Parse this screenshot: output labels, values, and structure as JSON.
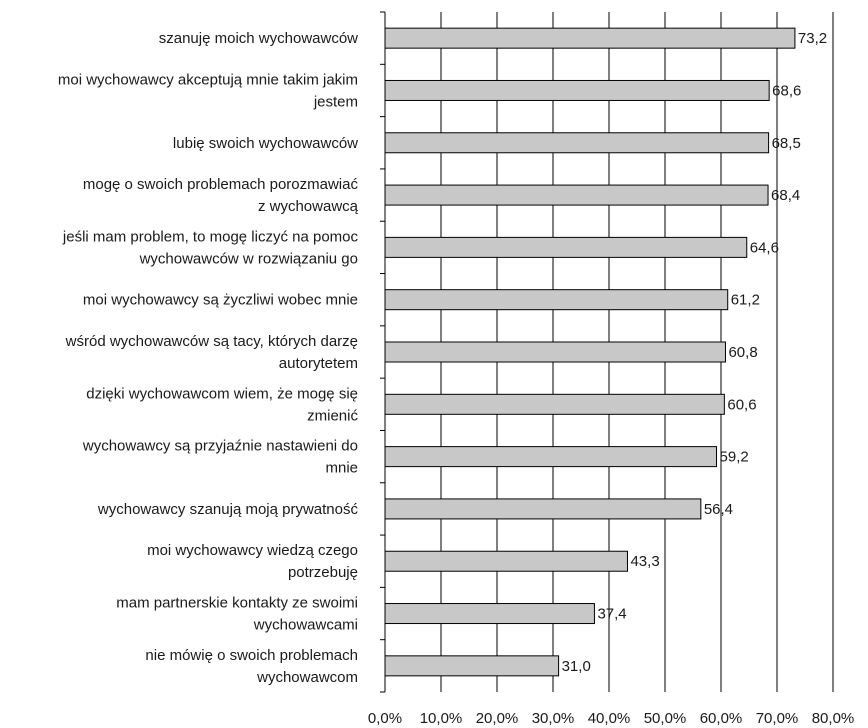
{
  "chart_data": {
    "type": "bar",
    "orientation": "horizontal",
    "categories": [
      "szanuję moich wychowawców",
      "moi wychowawcy akceptują mnie takim jakim jestem",
      "lubię swoich wychowawców",
      "mogę o swoich problemach porozmawiać z wychowawcą",
      "jeśli mam problem, to mogę liczyć na pomoc wychowawców w rozwiązaniu go",
      "moi wychowawcy są życzliwi wobec mnie",
      "wśród wychowawców są tacy, których darzę autorytetem",
      "dzięki wychowawcom wiem, że mogę się zmienić",
      "wychowawcy są przyjaźnie nastawieni do mnie",
      "wychowawcy szanują moją prywatność",
      "moi wychowawcy wiedzą czego potrzebuję",
      "mam partnerskie kontakty ze swoimi wychowawcami",
      "nie mówię o swoich problemach wychowawcom"
    ],
    "category_lines": [
      [
        "szanuję moich wychowawców"
      ],
      [
        "moi wychowawcy akceptują mnie takim jakim",
        "jestem"
      ],
      [
        "lubię swoich wychowawców"
      ],
      [
        "mogę o swoich problemach porozmawiać",
        "z wychowawcą"
      ],
      [
        "jeśli mam problem, to mogę liczyć na pomoc",
        "wychowawców w rozwiązaniu go"
      ],
      [
        "moi wychowawcy są życzliwi wobec mnie"
      ],
      [
        "wśród wychowawców są tacy, których darzę",
        "autorytetem"
      ],
      [
        "dzięki wychowawcom wiem, że mogę się",
        "zmienić"
      ],
      [
        "wychowawcy są przyjaźnie nastawieni do",
        "mnie"
      ],
      [
        "wychowawcy szanują moją prywatność"
      ],
      [
        "moi wychowawcy wiedzą czego",
        "potrzebuję"
      ],
      [
        "mam partnerskie kontakty ze swoimi",
        "wychowawcami"
      ],
      [
        "nie mówię o swoich problemach",
        "wychowawcom"
      ]
    ],
    "values": [
      73.2,
      68.6,
      68.5,
      68.4,
      64.6,
      61.2,
      60.8,
      60.6,
      59.2,
      56.4,
      43.3,
      37.4,
      31.0
    ],
    "value_labels": [
      "73,2",
      "68,6",
      "68,5",
      "68,4",
      "64,6",
      "61,2",
      "60,8",
      "60,6",
      "59,2",
      "56,4",
      "43,3",
      "37,4",
      "31,0"
    ],
    "xlim": [
      0,
      80
    ],
    "x_ticks": [
      "0,0%",
      "10,0%",
      "20,0%",
      "30,0%",
      "40,0%",
      "50,0%",
      "60,0%",
      "70,0%",
      "80,0%"
    ],
    "grid": true,
    "legend": "none",
    "title": "",
    "xlabel": "",
    "ylabel": "",
    "colors": {
      "bar_fill": "#c8c8c8",
      "bar_stroke": "#000000",
      "grid": "#000000",
      "axis": "#000000"
    }
  }
}
